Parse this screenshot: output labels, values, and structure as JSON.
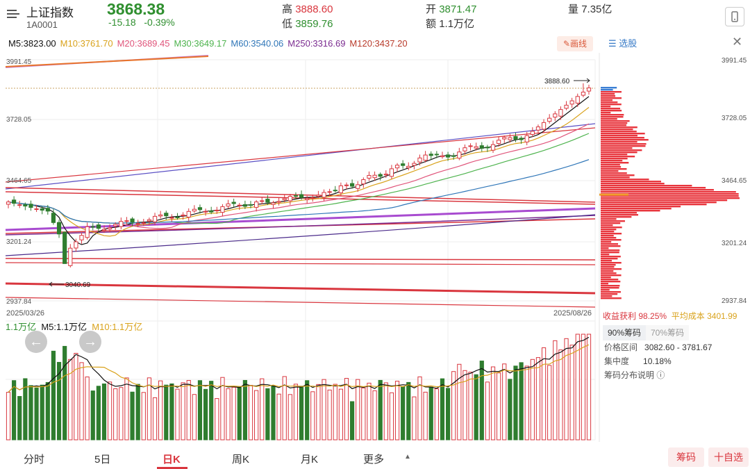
{
  "header": {
    "title": "上证指数",
    "code": "1A0001",
    "price": "3868.38",
    "change": "-15.18",
    "change_pct": "-0.39%",
    "high_label": "高",
    "high": "3888.60",
    "low_label": "低",
    "low": "3859.76",
    "open_label": "开",
    "open": "3871.47",
    "amount_label": "额",
    "amount": "1.1万亿",
    "volume_label": "量",
    "volume": "7.35亿"
  },
  "ma": [
    {
      "label": "M5:3823.00",
      "color": "#111111"
    },
    {
      "label": "M10:3761.70",
      "color": "#d9a21b"
    },
    {
      "label": "M20:3689.45",
      "color": "#e0557b"
    },
    {
      "label": "M30:3649.17",
      "color": "#4db34d"
    },
    {
      "label": "M60:3540.06",
      "color": "#2f76b8"
    },
    {
      "label": "M250:3316.69",
      "color": "#7a2a8f"
    },
    {
      "label": "M120:3437.20",
      "color": "#b83a2a"
    }
  ],
  "toolbar": {
    "draw_label": "画线",
    "xuangu_label": "选股",
    "close_label": "✕"
  },
  "price_axis": {
    "left": [
      "3991.45",
      "3728.05",
      "3464.65",
      "3201.24",
      "2937.84"
    ],
    "right": [
      "3991.45",
      "3728.05",
      "3464.65",
      "3201.24",
      "2937.84"
    ]
  },
  "annotations": {
    "high_mark": "3888.60",
    "low_mark": "3040.69",
    "start_date": "2025/03/26",
    "end_date": "2025/08/26"
  },
  "volume": {
    "total": "1.1万亿",
    "m5": "M5:1.1万亿",
    "m10": "M10:1.1万亿"
  },
  "nav": {
    "prev": "←",
    "next": "→"
  },
  "chips": {
    "profit_label": "收益获利",
    "profit_value": "98.25%",
    "avg_label": "平均成本",
    "avg_value": "3401.99",
    "tab_90": "90%筹码",
    "tab_70": "70%筹码",
    "range_label": "价格区间",
    "range_value": "3082.60 - 3781.67",
    "conc_label": "集中度",
    "conc_value": "10.18%",
    "explain": "筹码分布说明"
  },
  "bottom_tabs": [
    "分时",
    "5日",
    "日K",
    "周K",
    "月K",
    "更多"
  ],
  "active_tab": 2,
  "buttons": {
    "chips": "筹码",
    "add": "十自选"
  },
  "chart_data": {
    "type": "candlestick",
    "x_start": "2025/03/26",
    "x_end": "2025/08/26",
    "ylim": [
      2937.84,
      3991.45
    ],
    "high": 3888.6,
    "low": 3040.69,
    "close": 3868.38
  }
}
